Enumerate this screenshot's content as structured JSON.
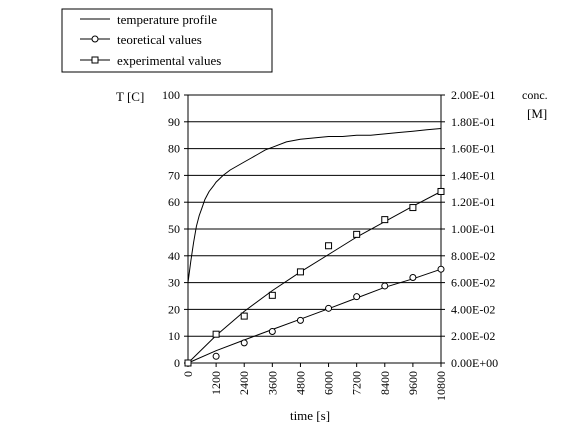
{
  "chart_data": {
    "type": "line",
    "x": {
      "label": "time [s]",
      "range": [
        0,
        10800
      ],
      "ticks": [
        "0",
        "1200",
        "2400",
        "3600",
        "4800",
        "6000",
        "7200",
        "8400",
        "9600",
        "10800"
      ]
    },
    "y_left": {
      "label": "T [C]",
      "range": [
        0,
        100
      ],
      "ticks": [
        "0",
        "10",
        "20",
        "30",
        "40",
        "50",
        "60",
        "70",
        "80",
        "90",
        "100"
      ]
    },
    "y_right": {
      "label_line1": "conc.",
      "label_line2": "[M]",
      "range": [
        0,
        0.2
      ],
      "ticks": [
        "0.00E+00",
        "2.00E-02",
        "4.00E-02",
        "6.00E-02",
        "8.00E-02",
        "1.00E-01",
        "1.20E-01",
        "1.40E-01",
        "1.60E-01",
        "1.80E-01",
        "2.00E-01"
      ]
    },
    "grid": "horizontal",
    "legend": "top-left",
    "series": [
      {
        "name": "temperature profile",
        "axis": "left",
        "marker": "none",
        "x": [
          0,
          120,
          240,
          360,
          480,
          600,
          720,
          900,
          1080,
          1200,
          1500,
          1800,
          2100,
          2400,
          2700,
          3000,
          3300,
          3600,
          4200,
          4800,
          5400,
          6000,
          6600,
          7200,
          7800,
          8400,
          9000,
          9600,
          10200,
          10800
        ],
        "y": [
          30,
          38,
          45,
          51,
          55,
          58,
          61,
          64,
          66,
          67.5,
          70,
          72,
          73.5,
          75,
          76.5,
          78,
          79.5,
          80.5,
          82.5,
          83.5,
          84,
          84.5,
          84.5,
          85,
          85,
          85.5,
          86,
          86.5,
          87,
          87.5
        ]
      },
      {
        "name": "teoretical values",
        "axis": "right",
        "marker": "circle",
        "line_x": [
          0,
          1200,
          2400,
          3600,
          4800,
          6000,
          7200,
          8400,
          9600,
          10800
        ],
        "line_y": [
          0,
          0.0092,
          0.0172,
          0.025,
          0.0327,
          0.0405,
          0.0485,
          0.0565,
          0.0628,
          0.07
        ],
        "points_x": [
          0,
          1200,
          2400,
          3600,
          4800,
          6000,
          7200,
          8400,
          9600,
          10800
        ],
        "points_y": [
          0,
          0.005,
          0.015,
          0.0235,
          0.0318,
          0.0408,
          0.0495,
          0.0575,
          0.0638,
          0.07
        ]
      },
      {
        "name": "experimental values",
        "axis": "right",
        "marker": "square",
        "line_x": [
          0,
          1200,
          2400,
          3600,
          4800,
          6000,
          7200,
          8400,
          9600,
          10800
        ],
        "line_y": [
          0,
          0.0205,
          0.0385,
          0.054,
          0.068,
          0.081,
          0.094,
          0.1055,
          0.117,
          0.128
        ],
        "points_x": [
          0,
          1200,
          2400,
          3600,
          4800,
          6000,
          7200,
          8400,
          9600,
          10800
        ],
        "points_y": [
          0,
          0.0215,
          0.035,
          0.0505,
          0.068,
          0.0875,
          0.096,
          0.107,
          0.116,
          0.128
        ]
      }
    ]
  }
}
